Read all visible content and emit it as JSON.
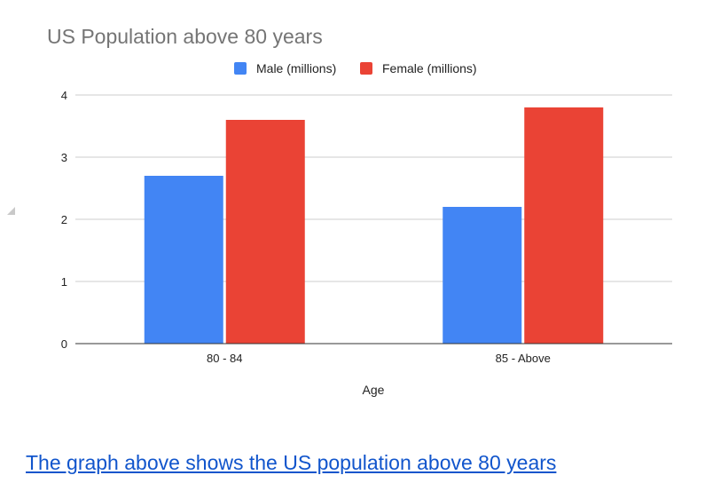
{
  "chart_data": {
    "type": "bar",
    "title": "US Population above 80 years",
    "xlabel": "Age",
    "ylabel": "",
    "categories": [
      "80 - 84",
      "85 - Above"
    ],
    "series": [
      {
        "name": "Male (millions)",
        "values": [
          2.7,
          2.2
        ],
        "color": "#4285f4"
      },
      {
        "name": "Female (millions)",
        "values": [
          3.6,
          3.8
        ],
        "color": "#ea4335"
      }
    ],
    "ylim": [
      0,
      4
    ],
    "yticks": [
      0,
      1,
      2,
      3,
      4
    ],
    "grid": true,
    "legend_position": "top"
  },
  "caption": {
    "text": "The graph above shows the US population above 80 years"
  }
}
